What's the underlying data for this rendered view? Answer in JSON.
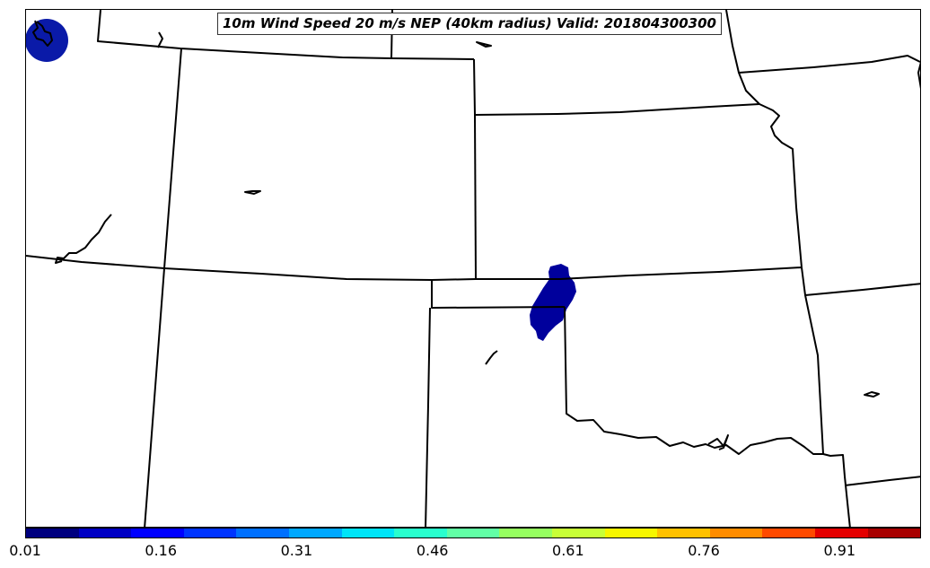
{
  "title": "10m Wind Speed 20 m/s NEP (40km radius) Valid: 201804300300",
  "colorbar": {
    "colormap": "jet",
    "range": [
      0.01,
      1.0
    ],
    "bin_colors": [
      "#00007f",
      "#0000c4",
      "#0000ff",
      "#0034ff",
      "#0070ff",
      "#00a8ff",
      "#00e4f8",
      "#29ffce",
      "#62ffa6",
      "#96ff60",
      "#c8ff37",
      "#f6f600",
      "#ffc100",
      "#ff8c00",
      "#ff4a00",
      "#e40000",
      "#a80000"
    ],
    "tick_labels": [
      "0.01",
      "0.16",
      "0.31",
      "0.46",
      "0.61",
      "0.76",
      "0.91"
    ]
  },
  "field_color": "#00009c",
  "corner_marker_color": "#0a1aa8"
}
